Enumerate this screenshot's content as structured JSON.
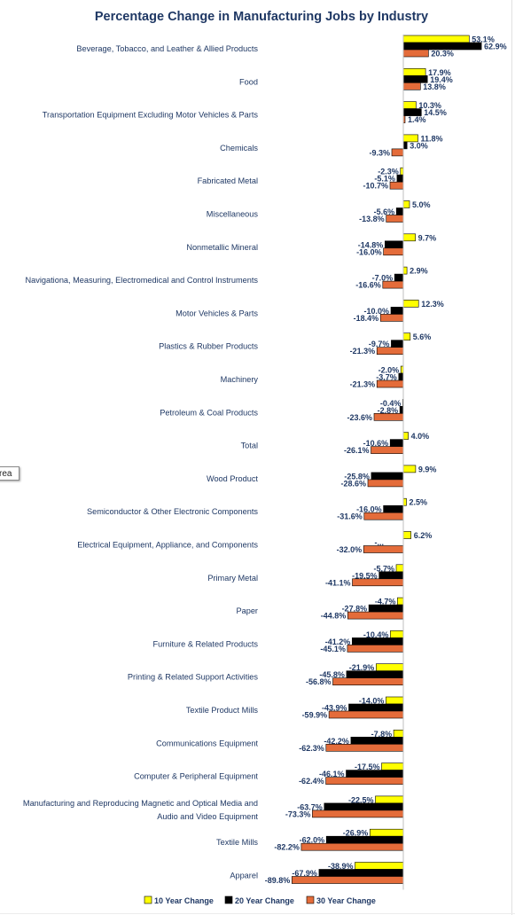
{
  "chart_data": {
    "type": "bar",
    "orientation": "horizontal",
    "title": "Percentage Change in Manufacturing Jobs by Industry",
    "categories": [
      [
        "Beverage, Tobacco, and Leather & Allied Products"
      ],
      [
        "Food"
      ],
      [
        "Transportation Equipment  Excluding Motor Vehicles & Parts"
      ],
      [
        "Chemicals"
      ],
      [
        "Fabricated Metal"
      ],
      [
        "Miscellaneous"
      ],
      [
        "Nonmetallic Mineral"
      ],
      [
        "Navigationa, Measuring, Electromedical and Control Instruments"
      ],
      [
        "Motor Vehicles & Parts"
      ],
      [
        "Plastics & Rubber Products"
      ],
      [
        "Machinery"
      ],
      [
        "Petroleum & Coal Products"
      ],
      [
        "Total"
      ],
      [
        "Wood Product"
      ],
      [
        "Semiconductor & Other Electronic Components"
      ],
      [
        "Electrical Equipment, Appliance, and Components"
      ],
      [
        "Primary Metal"
      ],
      [
        "Paper"
      ],
      [
        "Furniture & Related Products"
      ],
      [
        "Printing & Related Support Activities"
      ],
      [
        "Textile Product Mills"
      ],
      [
        "Communications Equipment"
      ],
      [
        "Computer & Peripheral Equipment"
      ],
      [
        "Manufacturing and Reproducing Magnetic and Optical Media and",
        "Audio and Video Equipment"
      ],
      [
        "Textile Mills"
      ],
      [
        "Apparel"
      ]
    ],
    "series": [
      {
        "name": "10 Year Change",
        "color": "#ffff00",
        "values": [
          53.1,
          17.9,
          10.3,
          11.8,
          -2.3,
          5.0,
          9.7,
          2.9,
          12.3,
          5.6,
          -2.0,
          -0.4,
          4.0,
          9.9,
          2.5,
          6.2,
          -5.7,
          -4.7,
          -10.4,
          -21.9,
          -14.0,
          -7.8,
          -17.5,
          -22.5,
          -26.9,
          -38.9
        ],
        "labels": [
          "53.1%",
          "17.9%",
          "10.3%",
          "11.8%",
          "-2.3%",
          "5.0%",
          "9.7%",
          "2.9%",
          "12.3%",
          "5.6%",
          "-2.0%",
          "-0.4%",
          "4.0%",
          "9.9%",
          "2.5%",
          "6.2%",
          "-5.7%",
          "-4.7%",
          "-10.4%",
          "-21.9%",
          "-14.0%",
          "-7.8%",
          "-17.5%",
          "-22.5%",
          "-26.9%",
          "-38.9%"
        ]
      },
      {
        "name": "20 Year Change",
        "color": "#000000",
        "values": [
          62.9,
          19.4,
          14.5,
          3.0,
          -5.1,
          -5.6,
          -14.8,
          -7.0,
          -10.0,
          -9.7,
          -3.7,
          -2.8,
          -10.6,
          -25.8,
          -16.0,
          null,
          -19.5,
          -27.8,
          -41.2,
          -45.8,
          -43.9,
          -42.2,
          -46.1,
          -63.7,
          -62.0,
          -67.9
        ],
        "labels": [
          "62.9%",
          "19.4%",
          "14.5%",
          "3.0%",
          "-5.1%",
          "-5.6%",
          "-14.8%",
          "-7.0%",
          "-10.0%",
          "-9.7%",
          "-3.7%",
          "-2.8%",
          "-10.6%",
          "-25.8%",
          "-16.0%",
          "-...",
          "-19.5%",
          "-27.8%",
          "-41.2%",
          "-45.8%",
          "-43.9%",
          "-42.2%",
          "-46.1%",
          "-63.7%",
          "-62.0%",
          "-67.9%"
        ]
      },
      {
        "name": "30 Year Change",
        "color": "#e46c3a",
        "values": [
          20.3,
          13.8,
          1.4,
          -9.3,
          -10.7,
          -13.8,
          -16.0,
          -16.6,
          -18.4,
          -21.3,
          -21.3,
          -23.6,
          -26.1,
          -28.6,
          -31.6,
          -32.0,
          -41.1,
          -44.8,
          -45.1,
          -56.8,
          -59.9,
          -62.3,
          -62.4,
          -73.3,
          -82.2,
          -89.8
        ],
        "labels": [
          "20.3%",
          "13.8%",
          "1.4%",
          "-9.3%",
          "-10.7%",
          "-13.8%",
          "-16.0%",
          "-16.6%",
          "-18.4%",
          "-21.3%",
          "-21.3%",
          "-23.6%",
          "-26.1%",
          "-28.6%",
          "-31.6%",
          "-32.0%",
          "-41.1%",
          "-44.8%",
          "-45.1%",
          "-56.8%",
          "-59.9%",
          "-62.3%",
          "-62.4%",
          "-73.3%",
          "-82.2%",
          "-89.8%"
        ]
      }
    ],
    "legend_position": "bottom",
    "grid": false
  },
  "tooltip": {
    "text": "rea"
  }
}
